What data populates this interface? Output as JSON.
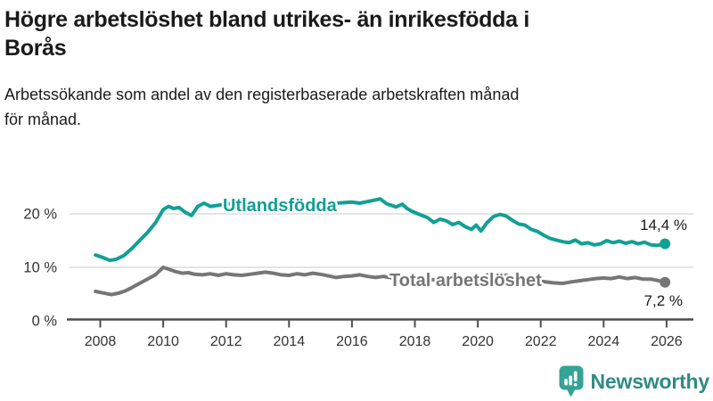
{
  "header": {
    "title_lines": [
      "Högre arbetslöshet bland utrikes- än inrikesfödda i",
      "Borås"
    ],
    "subtitle_lines": [
      "Arbetssökande som andel av den registerbaserade arbetskraften månad",
      "för månad."
    ]
  },
  "chart_data": {
    "type": "line",
    "title": "Högre arbetslöshet bland utrikes- än inrikesfödda i Borås",
    "subtitle": "Arbetssökande som andel av den registerbaserade arbetskraften månad för månad.",
    "grid": "horizontal",
    "legend_position": "inline-labels",
    "x_axis": {
      "unit": "year",
      "range": [
        2007.85,
        2026.8
      ],
      "ticks": [
        2008,
        2010,
        2012,
        2014,
        2016,
        2018,
        2020,
        2022,
        2024,
        2026
      ]
    },
    "y_axis": {
      "unit": "%",
      "range": [
        0,
        24
      ],
      "ticks": [
        {
          "value": 0,
          "label": "0 %"
        },
        {
          "value": 10,
          "label": "10 %"
        },
        {
          "value": 20,
          "label": "20 %"
        }
      ],
      "gridlines": [
        10,
        20
      ]
    },
    "series": [
      {
        "id": "utlandsfodda",
        "name": "Utlandsfödda",
        "color": "#11a095",
        "end_label": "14,4 %",
        "end_value": 14.4,
        "points": [
          [
            2007.85,
            12.3
          ],
          [
            2008.1,
            11.8
          ],
          [
            2008.3,
            11.3
          ],
          [
            2008.5,
            11.5
          ],
          [
            2008.75,
            12.2
          ],
          [
            2009,
            13.5
          ],
          [
            2009.25,
            15
          ],
          [
            2009.5,
            16.5
          ],
          [
            2009.75,
            18.3
          ],
          [
            2010,
            20.8
          ],
          [
            2010.17,
            21.4
          ],
          [
            2010.33,
            21
          ],
          [
            2010.5,
            21.2
          ],
          [
            2010.7,
            20.3
          ],
          [
            2010.9,
            19.7
          ],
          [
            2011.1,
            21.4
          ],
          [
            2011.3,
            22
          ],
          [
            2011.5,
            21.4
          ],
          [
            2011.75,
            21.6
          ],
          [
            2012,
            21.8
          ],
          [
            2012.25,
            22
          ],
          [
            2012.5,
            21.8
          ],
          [
            2012.75,
            22
          ],
          [
            2013,
            22.1
          ],
          [
            2013.25,
            21.9
          ],
          [
            2013.5,
            22.1
          ],
          [
            2013.75,
            21.8
          ],
          [
            2014,
            22
          ],
          [
            2014.25,
            22.2
          ],
          [
            2014.5,
            21.9
          ],
          [
            2014.75,
            22.1
          ],
          [
            2015,
            22
          ],
          [
            2015.25,
            22.2
          ],
          [
            2015.5,
            22
          ],
          [
            2015.75,
            22.1
          ],
          [
            2016,
            22.2
          ],
          [
            2016.25,
            22
          ],
          [
            2016.5,
            22.3
          ],
          [
            2016.9,
            22.8
          ],
          [
            2017.1,
            21.9
          ],
          [
            2017.4,
            21.3
          ],
          [
            2017.6,
            21.8
          ],
          [
            2017.75,
            21
          ],
          [
            2017.9,
            20.5
          ],
          [
            2018.1,
            20
          ],
          [
            2018.4,
            19.3
          ],
          [
            2018.6,
            18.4
          ],
          [
            2018.8,
            19
          ],
          [
            2019,
            18.7
          ],
          [
            2019.2,
            18
          ],
          [
            2019.4,
            18.4
          ],
          [
            2019.6,
            17.6
          ],
          [
            2019.8,
            17.1
          ],
          [
            2019.95,
            17.9
          ],
          [
            2020.1,
            16.8
          ],
          [
            2020.3,
            18.4
          ],
          [
            2020.5,
            19.5
          ],
          [
            2020.7,
            19.9
          ],
          [
            2020.9,
            19.6
          ],
          [
            2021.1,
            18.8
          ],
          [
            2021.3,
            18.1
          ],
          [
            2021.5,
            17.9
          ],
          [
            2021.7,
            17.1
          ],
          [
            2021.9,
            16.7
          ],
          [
            2022.1,
            16
          ],
          [
            2022.3,
            15.4
          ],
          [
            2022.5,
            15.1
          ],
          [
            2022.7,
            14.8
          ],
          [
            2022.9,
            14.6
          ],
          [
            2023.1,
            15.1
          ],
          [
            2023.3,
            14.4
          ],
          [
            2023.5,
            14.6
          ],
          [
            2023.7,
            14.2
          ],
          [
            2023.9,
            14.4
          ],
          [
            2024.1,
            15
          ],
          [
            2024.3,
            14.6
          ],
          [
            2024.5,
            14.9
          ],
          [
            2024.7,
            14.5
          ],
          [
            2024.9,
            14.8
          ],
          [
            2025.1,
            14.4
          ],
          [
            2025.3,
            14.7
          ],
          [
            2025.5,
            14.2
          ],
          [
            2025.7,
            14.1
          ],
          [
            2025.95,
            14.4
          ]
        ]
      },
      {
        "id": "total-arbetsloshet",
        "name": "Total arbetslöshet",
        "color": "#767676",
        "end_label": "7,2 %",
        "end_value": 7.2,
        "points": [
          [
            2007.85,
            5.5
          ],
          [
            2008.1,
            5.2
          ],
          [
            2008.35,
            4.9
          ],
          [
            2008.6,
            5.2
          ],
          [
            2008.8,
            5.6
          ],
          [
            2009,
            6.2
          ],
          [
            2009.25,
            7
          ],
          [
            2009.5,
            7.8
          ],
          [
            2009.75,
            8.6
          ],
          [
            2010,
            10
          ],
          [
            2010.2,
            9.6
          ],
          [
            2010.4,
            9.2
          ],
          [
            2010.6,
            8.9
          ],
          [
            2010.8,
            9
          ],
          [
            2011,
            8.7
          ],
          [
            2011.25,
            8.6
          ],
          [
            2011.5,
            8.8
          ],
          [
            2011.75,
            8.5
          ],
          [
            2012,
            8.8
          ],
          [
            2012.25,
            8.6
          ],
          [
            2012.5,
            8.5
          ],
          [
            2012.75,
            8.7
          ],
          [
            2013,
            8.9
          ],
          [
            2013.25,
            9.1
          ],
          [
            2013.5,
            8.9
          ],
          [
            2013.75,
            8.6
          ],
          [
            2014,
            8.5
          ],
          [
            2014.25,
            8.8
          ],
          [
            2014.5,
            8.6
          ],
          [
            2014.75,
            8.9
          ],
          [
            2015,
            8.7
          ],
          [
            2015.25,
            8.4
          ],
          [
            2015.5,
            8.1
          ],
          [
            2015.75,
            8.3
          ],
          [
            2016,
            8.4
          ],
          [
            2016.25,
            8.6
          ],
          [
            2016.5,
            8.3
          ],
          [
            2016.75,
            8.1
          ],
          [
            2017,
            8.3
          ],
          [
            2017.3,
            8
          ],
          [
            2017.6,
            8.2
          ],
          [
            2018,
            7.9
          ],
          [
            2018.5,
            7.7
          ],
          [
            2019,
            7.6
          ],
          [
            2019.5,
            7.5
          ],
          [
            2020,
            7.8
          ],
          [
            2020.4,
            8.8
          ],
          [
            2020.8,
            8.6
          ],
          [
            2021.2,
            8.2
          ],
          [
            2021.6,
            7.8
          ],
          [
            2022,
            7.4
          ],
          [
            2022.4,
            7.1
          ],
          [
            2022.7,
            7
          ],
          [
            2023,
            7.3
          ],
          [
            2023.25,
            7.5
          ],
          [
            2023.5,
            7.7
          ],
          [
            2023.75,
            7.9
          ],
          [
            2024,
            8
          ],
          [
            2024.25,
            7.9
          ],
          [
            2024.5,
            8.2
          ],
          [
            2024.75,
            7.9
          ],
          [
            2025,
            8.1
          ],
          [
            2025.25,
            7.8
          ],
          [
            2025.5,
            7.8
          ],
          [
            2025.75,
            7.5
          ],
          [
            2025.95,
            7.2
          ]
        ]
      }
    ]
  },
  "logo": {
    "brand": "Newsworthy",
    "icon": "newsworthy-speech-bubble-bar-chart-icon",
    "icon_color": "#35a296",
    "text_color": "#2f8b83"
  }
}
